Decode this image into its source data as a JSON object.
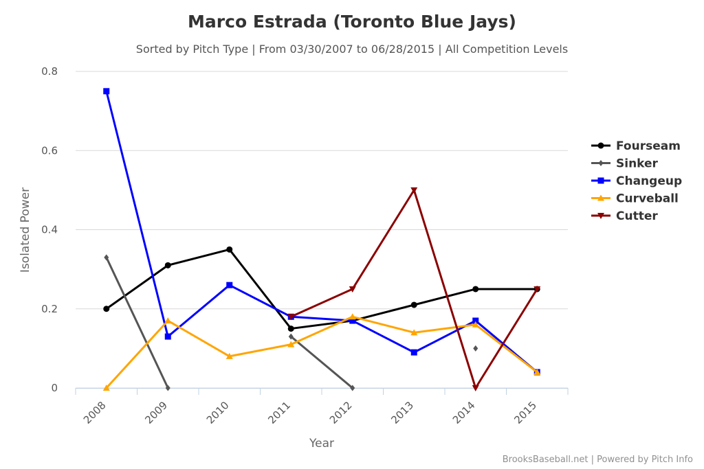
{
  "chart_data": {
    "type": "line",
    "title": "Marco Estrada (Toronto Blue Jays)",
    "subtitle": "Sorted by Pitch Type | From 03/30/2007 to 06/28/2015 | All Competition Levels",
    "xlabel": "Year",
    "ylabel": "Isolated Power",
    "categories": [
      "2008",
      "2009",
      "2010",
      "2011",
      "2012",
      "2013",
      "2014",
      "2015"
    ],
    "y_ticks": [
      "0",
      "0.2",
      "0.4",
      "0.6",
      "0.8"
    ],
    "ylim": [
      0,
      0.8
    ],
    "grid": "horizontal",
    "legend_position": "right",
    "series": [
      {
        "name": "Fourseam",
        "color": "#000000",
        "marker": "circle",
        "values": [
          0.2,
          0.31,
          0.35,
          0.15,
          0.17,
          0.21,
          0.25,
          0.25
        ]
      },
      {
        "name": "Sinker",
        "color": "#555555",
        "marker": "diamond",
        "values": [
          0.33,
          0.0,
          null,
          0.13,
          0.0,
          null,
          0.1,
          null
        ]
      },
      {
        "name": "Changeup",
        "color": "#0000ff",
        "marker": "square",
        "values": [
          0.75,
          0.13,
          0.26,
          0.18,
          0.17,
          0.09,
          0.17,
          0.04
        ]
      },
      {
        "name": "Curveball",
        "color": "#ffa500",
        "marker": "triangle",
        "values": [
          0.0,
          0.17,
          0.08,
          0.11,
          0.18,
          0.14,
          0.16,
          0.04
        ]
      },
      {
        "name": "Cutter",
        "color": "#8b0000",
        "marker": "triangle-down",
        "values": [
          null,
          null,
          null,
          0.18,
          0.25,
          0.5,
          0.0,
          0.25
        ]
      }
    ],
    "credits": "BrooksBaseball.net | Powered by Pitch Info"
  }
}
